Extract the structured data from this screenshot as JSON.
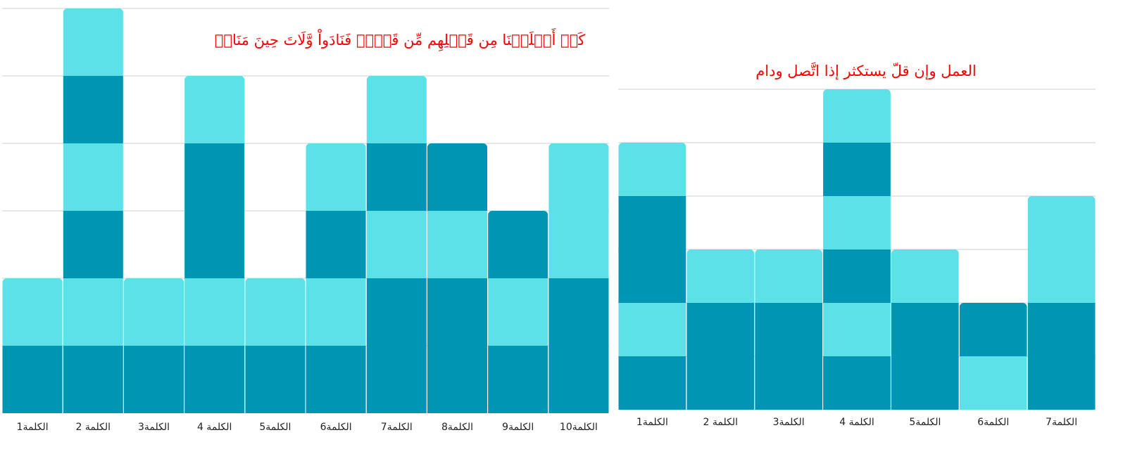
{
  "colors": {
    "dark": "#0096b3",
    "light": "#5ce1e8",
    "grid": "#cfcfcf",
    "title": "#ff0000"
  },
  "chart_data": [
    {
      "type": "bar",
      "stacked": true,
      "title": "كَمۡ أَهۡلَكۡنَا مِن قَبۡلِهِم مِّن قَرۡنٖ فَنَادَواْ وَّلَاتَ حِينَ مَنَاصٖ",
      "xlabel": "",
      "ylabel": "",
      "ylim": [
        0,
        6
      ],
      "grid": true,
      "categories": [
        "الكلمة1",
        "الكلمة 2",
        "الكلمة3",
        "الكلمة 4",
        "الكلمة5",
        "الكلمة6",
        "الكلمة7",
        "الكلمة8",
        "الكلمة9",
        "الكلمة10"
      ],
      "segments": [
        [
          "dark",
          "light"
        ],
        [
          "dark",
          "light",
          "dark",
          "light",
          "dark",
          "light"
        ],
        [
          "dark",
          "light"
        ],
        [
          "dark",
          "light",
          "dark",
          "dark",
          "light"
        ],
        [
          "dark",
          "light"
        ],
        [
          "dark",
          "light",
          "dark",
          "light"
        ],
        [
          "dark",
          "dark",
          "light",
          "dark",
          "light"
        ],
        [
          "dark",
          "dark",
          "light",
          "dark"
        ],
        [
          "dark",
          "light",
          "dark"
        ],
        [
          "dark",
          "dark",
          "light",
          "light"
        ]
      ],
      "totals": [
        2,
        6,
        2,
        5,
        2,
        4,
        5,
        4,
        3,
        4
      ]
    },
    {
      "type": "bar",
      "stacked": true,
      "title": "العمل وإن قلّ يستكثر إذا اتَّصل ودام",
      "xlabel": "",
      "ylabel": "",
      "ylim": [
        0,
        6
      ],
      "grid": true,
      "categories": [
        "الكلمة1",
        "الكلمة 2",
        "الكلمة3",
        "الكلمة 4",
        "الكلمة5",
        "الكلمة6",
        "الكلمة7"
      ],
      "segments": [
        [
          "dark",
          "light",
          "dark",
          "dark",
          "light"
        ],
        [
          "dark",
          "dark",
          "light"
        ],
        [
          "dark",
          "dark",
          "light"
        ],
        [
          "dark",
          "light",
          "dark",
          "light",
          "dark",
          "light"
        ],
        [
          "dark",
          "dark",
          "light"
        ],
        [
          "light",
          "dark"
        ],
        [
          "dark",
          "dark",
          "light",
          "light"
        ]
      ],
      "totals": [
        5,
        3,
        3,
        6,
        3,
        2,
        4
      ]
    }
  ]
}
